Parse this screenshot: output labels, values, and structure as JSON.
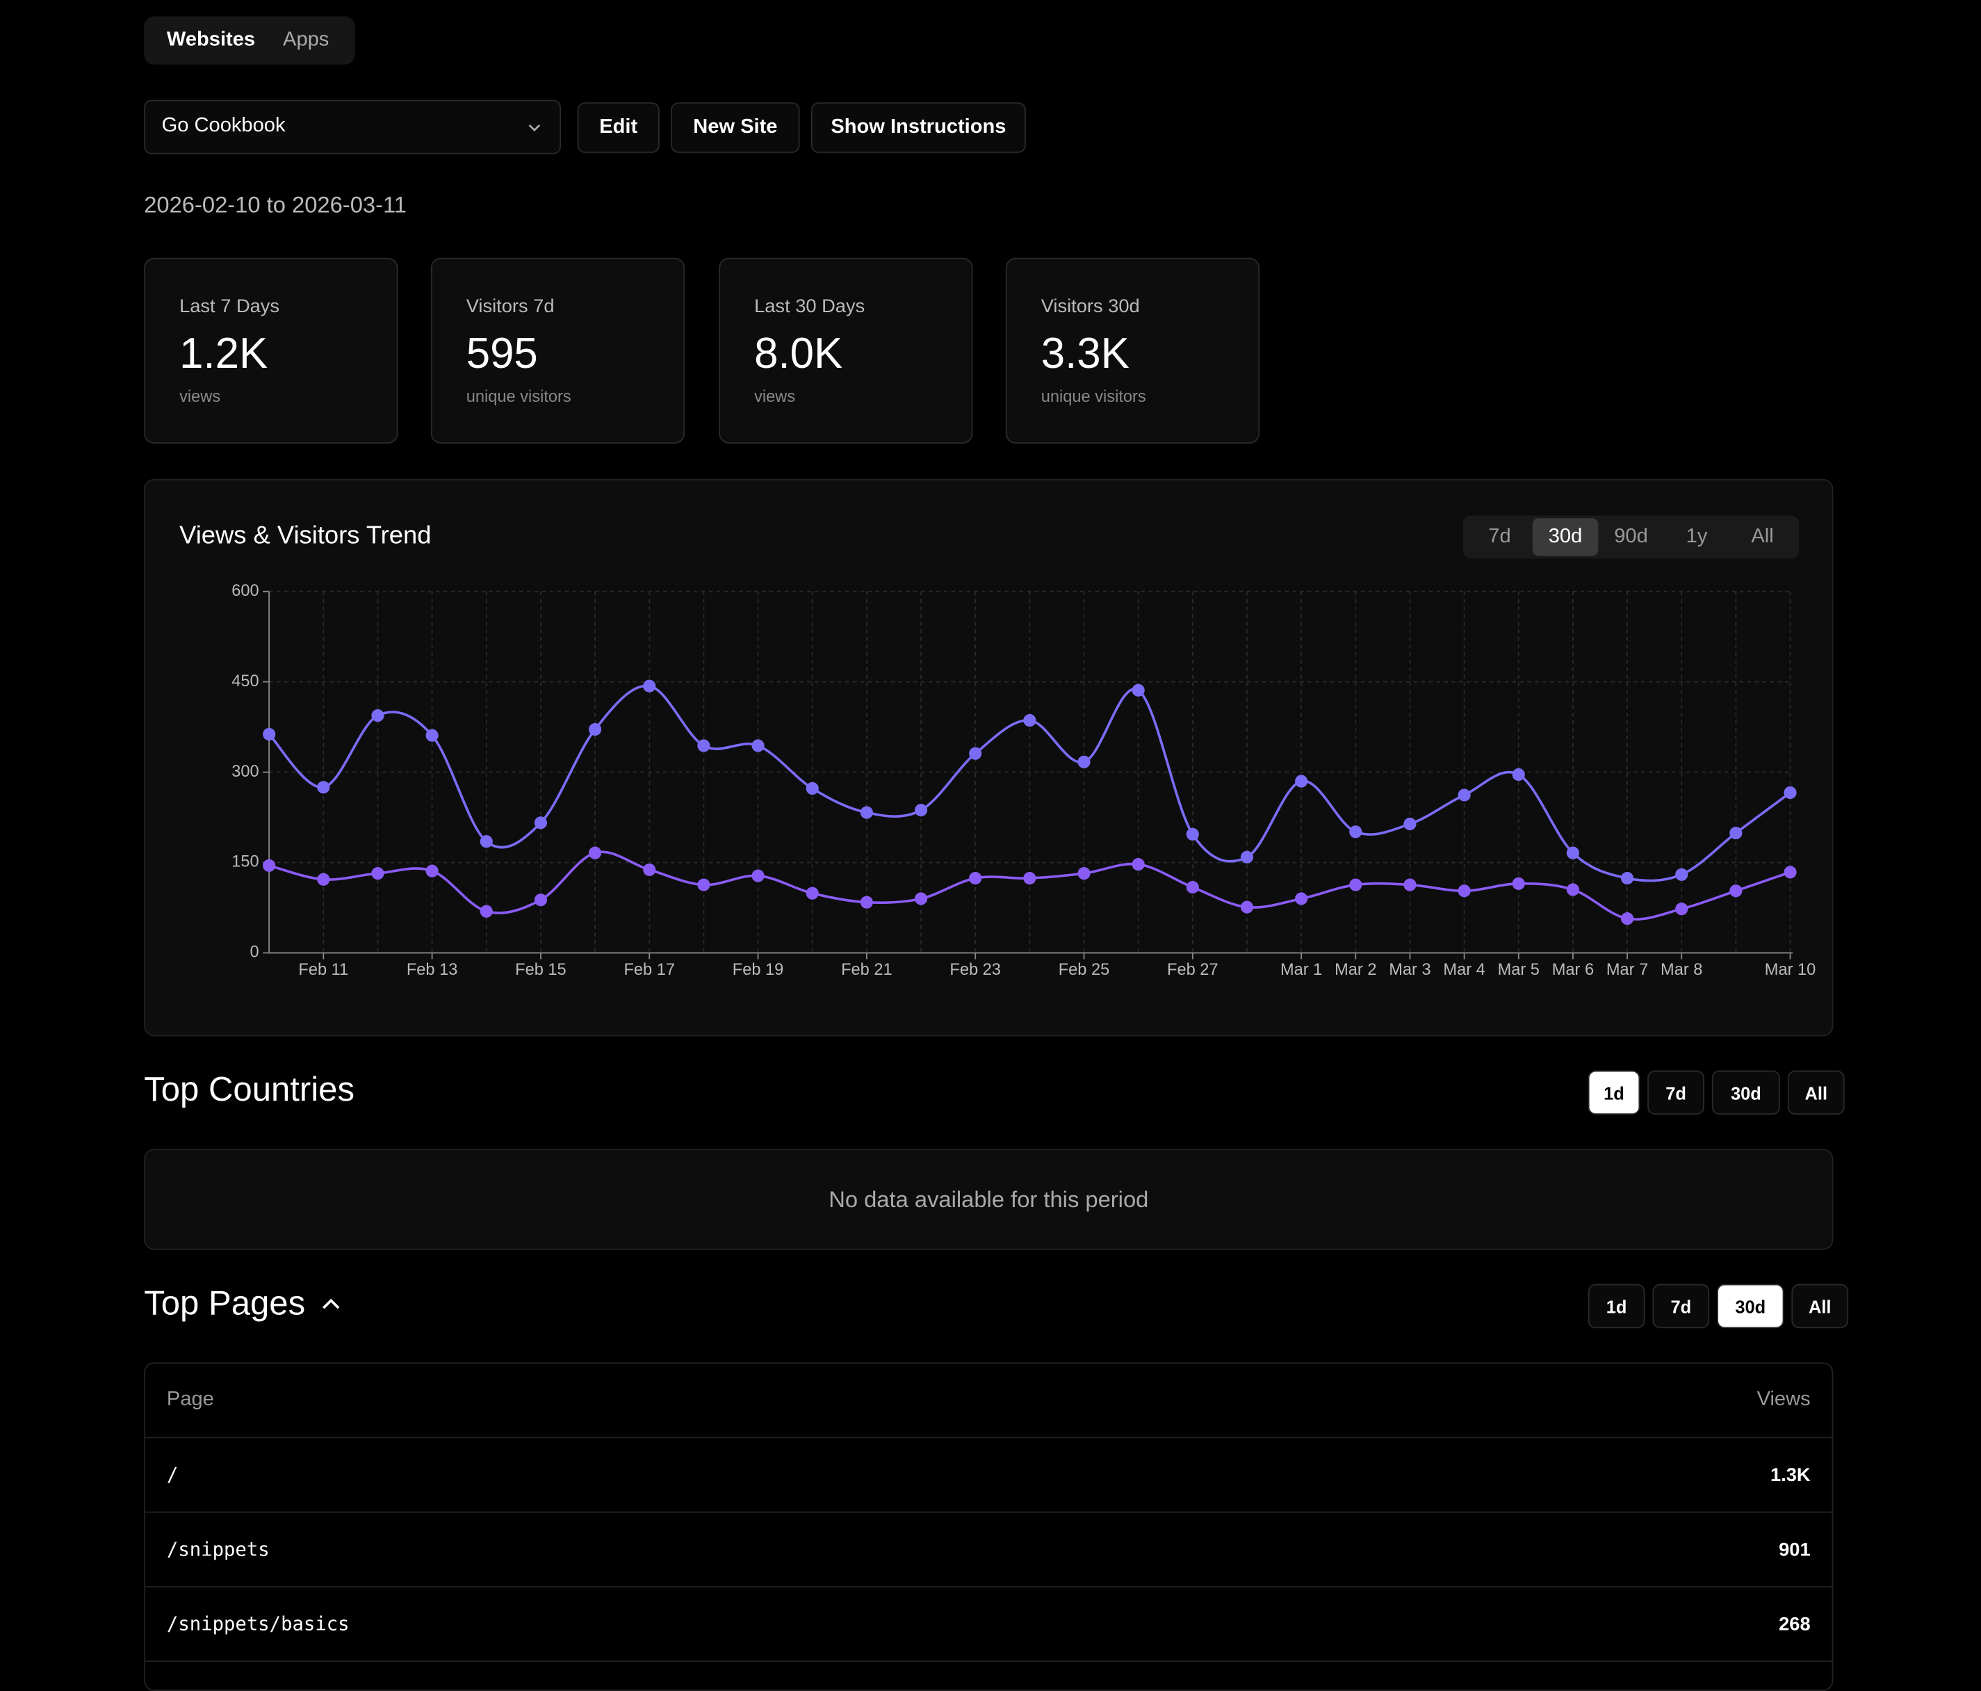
{
  "tabs": [
    "Websites",
    "Apps"
  ],
  "site_select": "Go Cookbook",
  "buttons": [
    "Edit",
    "New Site",
    "Show Instructions"
  ],
  "date_range": "2026-02-10 to 2026-03-11",
  "stats": [
    {
      "label": "Last 7 Days",
      "value": "1.2K",
      "unit": "views"
    },
    {
      "label": "Visitors 7d",
      "value": "595",
      "unit": "unique visitors"
    },
    {
      "label": "Last 30 Days",
      "value": "8.0K",
      "unit": "views"
    },
    {
      "label": "Visitors 30d",
      "value": "3.3K",
      "unit": "unique visitors"
    }
  ],
  "trend_ranges": [
    "7d",
    "30d",
    "90d",
    "1y",
    "All"
  ],
  "chart_data": {
    "type": "line",
    "title": "Views & Visitors Trend",
    "categories": [
      null,
      "Feb 11",
      null,
      "Feb 13",
      null,
      "Feb 15",
      null,
      "Feb 17",
      null,
      "Feb 19",
      null,
      "Feb 21",
      null,
      "Feb 23",
      null,
      "Feb 25",
      null,
      "Feb 27",
      null,
      "Mar 1",
      "Mar 2",
      "Mar 3",
      "Mar 4",
      "Mar 5",
      "Mar 6",
      "Mar 7",
      "Mar 8",
      null,
      "Mar 10"
    ],
    "series": [
      {
        "color": "#7b6cf6",
        "values": [
          363,
          275,
          394,
          361,
          185,
          216,
          371,
          443,
          344,
          344,
          273,
          233,
          237,
          331,
          386,
          317,
          436,
          197,
          159,
          285,
          201,
          214,
          262,
          296,
          166,
          124,
          130,
          199,
          266
        ]
      },
      {
        "color": "#8a5cf6",
        "values": [
          145,
          122,
          132,
          136,
          69,
          88,
          166,
          138,
          113,
          128,
          99,
          84,
          90,
          124,
          124,
          132,
          147,
          109,
          76,
          90,
          113,
          113,
          103,
          115,
          105,
          57,
          73,
          103,
          134
        ]
      }
    ],
    "ylim": [
      0,
      600
    ],
    "yticks": [
      0,
      150,
      300,
      450,
      600
    ],
    "grid": true
  },
  "countries": {
    "title": "Top Countries",
    "ranges": [
      "1d",
      "7d",
      "30d",
      "All"
    ],
    "empty": "No data available for this period"
  },
  "pages": {
    "title": "Top Pages",
    "ranges": [
      "1d",
      "7d",
      "30d",
      "All"
    ],
    "table": {
      "header": [
        "Page",
        "Views"
      ],
      "rows": [
        [
          "/",
          "1.3K"
        ],
        [
          "/snippets",
          "901"
        ],
        [
          "/snippets/basics",
          "268"
        ]
      ]
    }
  }
}
